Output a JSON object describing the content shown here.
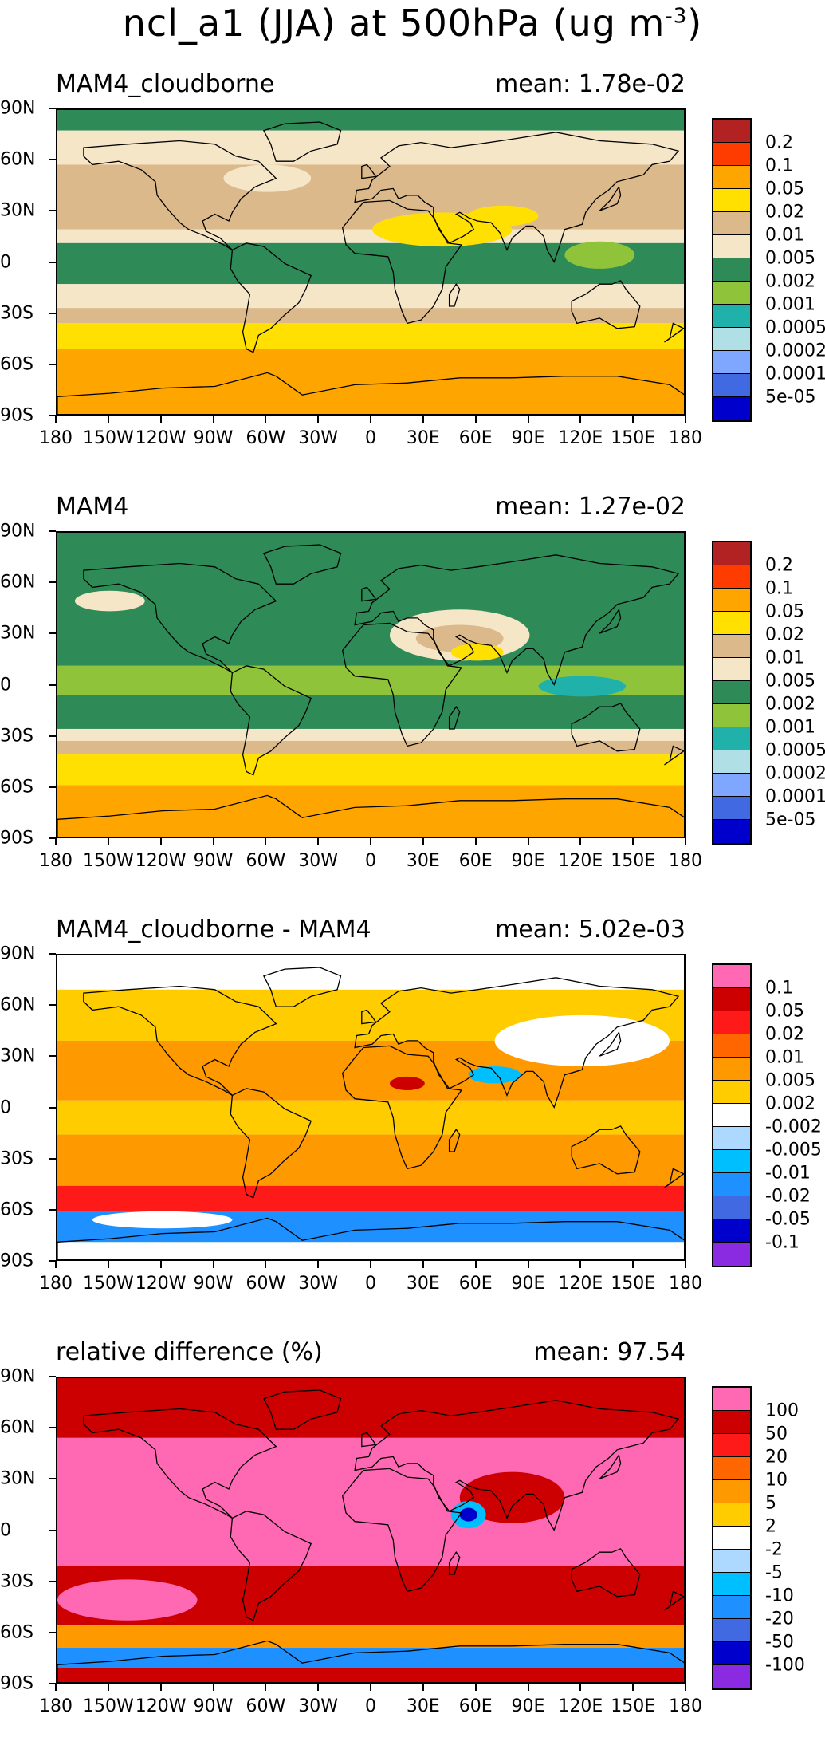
{
  "title": {
    "text": "ncl_a1 (JJA) at 500hPa (ug m",
    "sup": "-3",
    "close": ")"
  },
  "axes": {
    "lat_ticks": [
      "90N",
      "60N",
      "30N",
      "0",
      "30S",
      "60S",
      "90S"
    ],
    "lon_ticks": [
      "180",
      "150W",
      "120W",
      "90W",
      "60W",
      "30W",
      "0",
      "30E",
      "60E",
      "90E",
      "120E",
      "150E",
      "180"
    ]
  },
  "panels": [
    {
      "name": "MAM4_cloudborne",
      "mean": "mean: 1.78e-02",
      "colorbar": {
        "labels": [
          "0.2",
          "0.1",
          "0.05",
          "0.02",
          "0.01",
          "0.005",
          "0.002",
          "0.001",
          "0.0005",
          "0.0002",
          "0.0001",
          "5e-05"
        ],
        "colors": [
          "#b22222",
          "#ff3c00",
          "#ffa500",
          "#ffe000",
          "#dcb98a",
          "#f5e6c8",
          "#2e8b57",
          "#8fc43a",
          "#20b2aa",
          "#b0e0e6",
          "#7fa7ff",
          "#4169e1",
          "#0000cd"
        ]
      },
      "bands": [
        {
          "lat_top": 90,
          "lat_bottom": 78,
          "color": "#2e8b57"
        },
        {
          "lat_top": 78,
          "lat_bottom": 58,
          "color": "#f5e6c8"
        },
        {
          "lat_top": 58,
          "lat_bottom": 20,
          "color": "#dcb98a"
        },
        {
          "lat_top": 20,
          "lat_bottom": 12,
          "color": "#f5e6c8"
        },
        {
          "lat_top": 12,
          "lat_bottom": -12,
          "color": "#2e8b57"
        },
        {
          "lat_top": -12,
          "lat_bottom": -26,
          "color": "#f5e6c8"
        },
        {
          "lat_top": -26,
          "lat_bottom": -35,
          "color": "#dcb98a"
        },
        {
          "lat_top": -35,
          "lat_bottom": -50,
          "color": "#ffe000"
        },
        {
          "lat_top": -50,
          "lat_bottom": -90,
          "color": "#ffa500"
        }
      ],
      "blobs": [
        {
          "lon": 40,
          "lat": 20,
          "rx": 40,
          "ry": 10,
          "color": "#ffe000"
        },
        {
          "lon": 75,
          "lat": 28,
          "rx": 20,
          "ry": 6,
          "color": "#ffe000"
        },
        {
          "lon": 130,
          "lat": 5,
          "rx": 20,
          "ry": 8,
          "color": "#8fc43a"
        },
        {
          "lon": -60,
          "lat": 50,
          "rx": 25,
          "ry": 8,
          "color": "#f5e6c8"
        }
      ]
    },
    {
      "name": "MAM4",
      "mean": "mean: 1.27e-02",
      "colorbar": {
        "labels": [
          "0.2",
          "0.1",
          "0.05",
          "0.02",
          "0.01",
          "0.005",
          "0.002",
          "0.001",
          "0.0005",
          "0.0002",
          "0.0001",
          "5e-05"
        ],
        "colors": [
          "#b22222",
          "#ff3c00",
          "#ffa500",
          "#ffe000",
          "#dcb98a",
          "#f5e6c8",
          "#2e8b57",
          "#8fc43a",
          "#20b2aa",
          "#b0e0e6",
          "#7fa7ff",
          "#4169e1",
          "#0000cd"
        ]
      },
      "bands": [
        {
          "lat_top": 90,
          "lat_bottom": 12,
          "color": "#2e8b57"
        },
        {
          "lat_top": 12,
          "lat_bottom": -5,
          "color": "#8fc43a"
        },
        {
          "lat_top": -5,
          "lat_bottom": -25,
          "color": "#2e8b57"
        },
        {
          "lat_top": -25,
          "lat_bottom": -32,
          "color": "#f5e6c8"
        },
        {
          "lat_top": -32,
          "lat_bottom": -40,
          "color": "#dcb98a"
        },
        {
          "lat_top": -40,
          "lat_bottom": -58,
          "color": "#ffe000"
        },
        {
          "lat_top": -58,
          "lat_bottom": -90,
          "color": "#ffa500"
        }
      ],
      "blobs": [
        {
          "lon": 50,
          "lat": 30,
          "rx": 40,
          "ry": 15,
          "color": "#f5e6c8"
        },
        {
          "lon": 50,
          "lat": 28,
          "rx": 25,
          "ry": 8,
          "color": "#dcb98a"
        },
        {
          "lon": 60,
          "lat": 20,
          "rx": 15,
          "ry": 5,
          "color": "#ffe000"
        },
        {
          "lon": 120,
          "lat": 0,
          "rx": 25,
          "ry": 6,
          "color": "#20b2aa"
        },
        {
          "lon": -150,
          "lat": 50,
          "rx": 20,
          "ry": 6,
          "color": "#f5e6c8"
        }
      ]
    },
    {
      "name": "MAM4_cloudborne - MAM4",
      "mean": "mean: 5.02e-03",
      "colorbar": {
        "labels": [
          "0.1",
          "0.05",
          "0.02",
          "0.01",
          "0.005",
          "0.002",
          "-0.002",
          "-0.005",
          "-0.01",
          "-0.02",
          "-0.05",
          "-0.1"
        ],
        "colors": [
          "#ff69b4",
          "#cc0000",
          "#ff1a1a",
          "#ff6600",
          "#ff9900",
          "#ffcc00",
          "#ffffff",
          "#add8ff",
          "#00bfff",
          "#1e90ff",
          "#4169e1",
          "#0000cd",
          "#8a2be2"
        ]
      },
      "bands": [
        {
          "lat_top": 90,
          "lat_bottom": 70,
          "color": "#ffffff"
        },
        {
          "lat_top": 70,
          "lat_bottom": 40,
          "color": "#ffcc00"
        },
        {
          "lat_top": 40,
          "lat_bottom": 5,
          "color": "#ff9900"
        },
        {
          "lat_top": 5,
          "lat_bottom": -15,
          "color": "#ffcc00"
        },
        {
          "lat_top": -15,
          "lat_bottom": -45,
          "color": "#ff9900"
        },
        {
          "lat_top": -45,
          "lat_bottom": -60,
          "color": "#ff1a1a"
        },
        {
          "lat_top": -60,
          "lat_bottom": -78,
          "color": "#1e90ff"
        },
        {
          "lat_top": -78,
          "lat_bottom": -90,
          "color": "#ffffff"
        }
      ],
      "blobs": [
        {
          "lon": 120,
          "lat": 40,
          "rx": 50,
          "ry": 15,
          "color": "#ffffff"
        },
        {
          "lon": 20,
          "lat": 15,
          "rx": 10,
          "ry": 4,
          "color": "#cc0000"
        },
        {
          "lon": 70,
          "lat": 20,
          "rx": 15,
          "ry": 5,
          "color": "#00bfff"
        },
        {
          "lon": -120,
          "lat": -65,
          "rx": 40,
          "ry": 5,
          "color": "#ffffff"
        }
      ]
    },
    {
      "name": "relative difference (%)",
      "mean": "mean: 97.54",
      "colorbar": {
        "labels": [
          "100",
          "50",
          "20",
          "10",
          "5",
          "2",
          "-2",
          "-5",
          "-10",
          "-20",
          "-50",
          "-100"
        ],
        "colors": [
          "#ff69b4",
          "#cc0000",
          "#ff1a1a",
          "#ff6600",
          "#ff9900",
          "#ffcc00",
          "#ffffff",
          "#add8ff",
          "#00bfff",
          "#1e90ff",
          "#4169e1",
          "#0000cd",
          "#8a2be2"
        ]
      },
      "bands": [
        {
          "lat_top": 90,
          "lat_bottom": 55,
          "color": "#cc0000"
        },
        {
          "lat_top": 55,
          "lat_bottom": -20,
          "color": "#ff69b4"
        },
        {
          "lat_top": -20,
          "lat_bottom": -55,
          "color": "#cc0000"
        },
        {
          "lat_top": -55,
          "lat_bottom": -68,
          "color": "#ff9900"
        },
        {
          "lat_top": -68,
          "lat_bottom": -80,
          "color": "#1e90ff"
        },
        {
          "lat_top": -80,
          "lat_bottom": -90,
          "color": "#cc0000"
        }
      ],
      "blobs": [
        {
          "lon": 80,
          "lat": 20,
          "rx": 30,
          "ry": 15,
          "color": "#cc0000"
        },
        {
          "lon": 55,
          "lat": 10,
          "rx": 10,
          "ry": 8,
          "color": "#00bfff"
        },
        {
          "lon": 55,
          "lat": 10,
          "rx": 5,
          "ry": 4,
          "color": "#0000cd"
        },
        {
          "lon": -140,
          "lat": -40,
          "rx": 40,
          "ry": 12,
          "color": "#ff69b4"
        }
      ]
    }
  ]
}
